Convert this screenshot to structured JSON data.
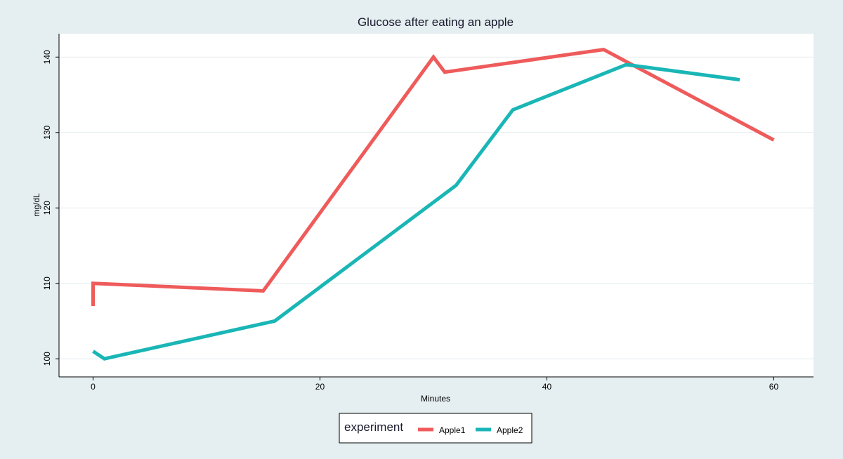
{
  "chart_data": {
    "type": "line",
    "title": "Glucose after eating an apple",
    "xlabel": "Minutes",
    "ylabel": "mg/dL",
    "xlim": [
      -3,
      63.5
    ],
    "ylim": [
      97.6,
      143.1
    ],
    "xticks": [
      0,
      20,
      40,
      60
    ],
    "yticks": [
      100,
      110,
      120,
      130,
      140
    ],
    "grid": true,
    "legend": {
      "title": "experiment",
      "position": "bottom"
    },
    "series": [
      {
        "name": "Apple1",
        "color": "#ef5b5b",
        "points": [
          [
            0,
            107
          ],
          [
            0,
            110
          ],
          [
            15,
            109
          ],
          [
            30,
            140
          ],
          [
            31,
            138
          ],
          [
            45,
            141
          ],
          [
            60,
            129
          ]
        ]
      },
      {
        "name": "Apple2",
        "color": "#1ab6b6",
        "points": [
          [
            0,
            101
          ],
          [
            1,
            100
          ],
          [
            16,
            105
          ],
          [
            32,
            123
          ],
          [
            37,
            133
          ],
          [
            47,
            139
          ],
          [
            57,
            137
          ]
        ]
      }
    ]
  }
}
